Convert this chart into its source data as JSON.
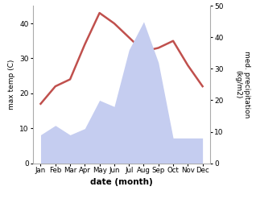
{
  "months": [
    "Jan",
    "Feb",
    "Mar",
    "Apr",
    "May",
    "Jun",
    "Jul",
    "Aug",
    "Sep",
    "Oct",
    "Nov",
    "Dec"
  ],
  "month_indices": [
    0,
    1,
    2,
    3,
    4,
    5,
    6,
    7,
    8,
    9,
    10,
    11
  ],
  "temperature": [
    17,
    22,
    24,
    34,
    43,
    40,
    36,
    32,
    33,
    35,
    28,
    22
  ],
  "precipitation": [
    9,
    12,
    9,
    11,
    20,
    18,
    36,
    45,
    32,
    8,
    8,
    8
  ],
  "temp_color": "#c0504d",
  "precip_fill_color": "#c5cdf0",
  "ylabel_left": "max temp (C)",
  "ylabel_right": "med. precipitation\n(kg/m2)",
  "xlabel": "date (month)",
  "ylim_left": [
    0,
    45
  ],
  "ylim_right": [
    0,
    50
  ],
  "yticks_left": [
    0,
    10,
    20,
    30,
    40
  ],
  "yticks_right": [
    0,
    10,
    20,
    30,
    40,
    50
  ],
  "bg_color": "#ffffff"
}
